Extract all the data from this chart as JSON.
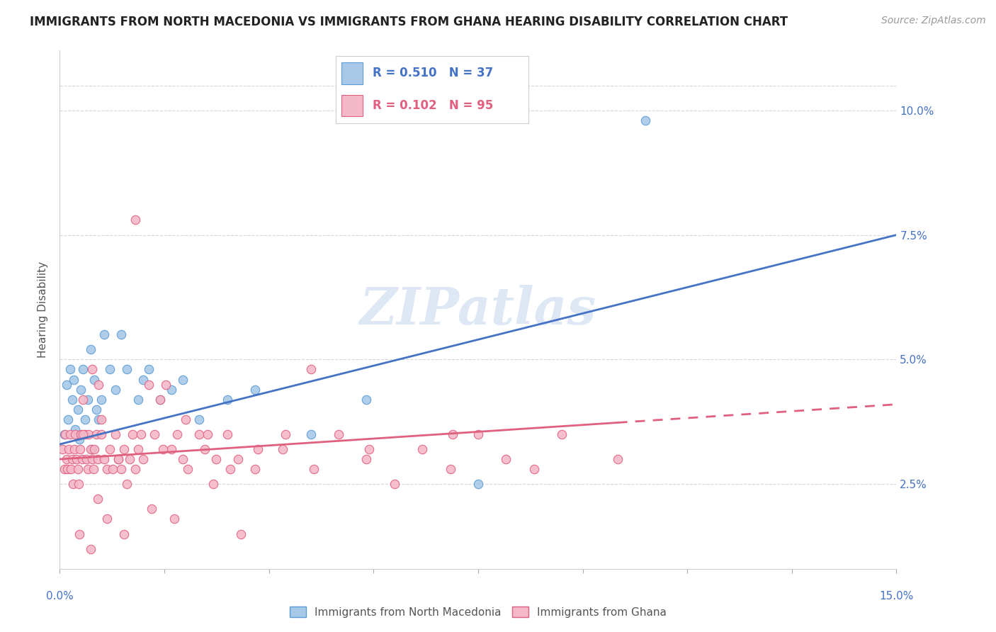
{
  "title": "IMMIGRANTS FROM NORTH MACEDONIA VS IMMIGRANTS FROM GHANA HEARING DISABILITY CORRELATION CHART",
  "source": "Source: ZipAtlas.com",
  "ylabel": "Hearing Disability",
  "xlim": [
    0.0,
    15.0
  ],
  "ylim": [
    0.8,
    11.2
  ],
  "yticks": [
    2.5,
    5.0,
    7.5,
    10.0
  ],
  "ytick_labels": [
    "2.5%",
    "5.0%",
    "7.5%",
    "10.0%"
  ],
  "series_blue": {
    "name": "Immigrants from North Macedonia",
    "color": "#a8c8e8",
    "edge_color": "#5b9bd5",
    "line_color": "#4472c4",
    "R": 0.51,
    "N": 37,
    "x": [
      0.08,
      0.12,
      0.15,
      0.18,
      0.22,
      0.25,
      0.28,
      0.32,
      0.35,
      0.38,
      0.42,
      0.45,
      0.5,
      0.55,
      0.58,
      0.62,
      0.65,
      0.7,
      0.75,
      0.8,
      0.9,
      1.0,
      1.1,
      1.2,
      1.4,
      1.5,
      1.6,
      1.8,
      2.0,
      2.2,
      2.5,
      3.0,
      3.5,
      4.5,
      5.5,
      7.5,
      10.5
    ],
    "y": [
      3.5,
      4.5,
      3.8,
      4.8,
      4.2,
      4.6,
      3.6,
      4.0,
      3.4,
      4.4,
      4.8,
      3.8,
      4.2,
      5.2,
      3.2,
      4.6,
      4.0,
      3.8,
      4.2,
      5.5,
      4.8,
      4.4,
      5.5,
      4.8,
      4.2,
      4.6,
      4.8,
      4.2,
      4.4,
      4.6,
      3.8,
      4.2,
      4.4,
      3.5,
      4.2,
      2.5,
      9.8
    ]
  },
  "series_pink": {
    "name": "Immigrants from Ghana",
    "color": "#f4b8c8",
    "edge_color": "#e06080",
    "line_color": "#e06080",
    "R": 0.102,
    "N": 95,
    "x": [
      0.05,
      0.08,
      0.1,
      0.12,
      0.14,
      0.16,
      0.18,
      0.2,
      0.22,
      0.24,
      0.26,
      0.28,
      0.3,
      0.32,
      0.34,
      0.36,
      0.38,
      0.4,
      0.42,
      0.45,
      0.48,
      0.5,
      0.52,
      0.55,
      0.58,
      0.6,
      0.62,
      0.65,
      0.68,
      0.7,
      0.75,
      0.8,
      0.85,
      0.9,
      0.95,
      1.0,
      1.05,
      1.1,
      1.15,
      1.2,
      1.25,
      1.3,
      1.35,
      1.4,
      1.5,
      1.6,
      1.7,
      1.8,
      1.9,
      2.0,
      2.1,
      2.2,
      2.3,
      2.5,
      2.6,
      2.8,
      3.0,
      3.2,
      3.5,
      4.0,
      4.5,
      5.0,
      5.5,
      6.0,
      6.5,
      7.0,
      7.5,
      8.0,
      8.5,
      9.0,
      10.0,
      0.42,
      0.58,
      0.75,
      1.05,
      1.45,
      1.85,
      2.25,
      2.65,
      3.05,
      3.55,
      4.05,
      4.55,
      5.55,
      7.05,
      3.25,
      1.65,
      2.05,
      0.35,
      0.55,
      0.85,
      1.15,
      0.68,
      1.35,
      2.75
    ],
    "y": [
      3.2,
      2.8,
      3.5,
      3.0,
      2.8,
      3.2,
      3.5,
      2.8,
      3.0,
      2.5,
      3.2,
      3.5,
      3.0,
      2.8,
      2.5,
      3.2,
      3.5,
      3.0,
      4.2,
      3.5,
      3.0,
      2.8,
      3.5,
      3.2,
      3.0,
      2.8,
      3.2,
      3.5,
      3.0,
      4.5,
      3.5,
      3.0,
      2.8,
      3.2,
      2.8,
      3.5,
      3.0,
      2.8,
      3.2,
      2.5,
      3.0,
      3.5,
      2.8,
      3.2,
      3.0,
      4.5,
      3.5,
      4.2,
      4.5,
      3.2,
      3.5,
      3.0,
      2.8,
      3.5,
      3.2,
      3.0,
      3.5,
      3.0,
      2.8,
      3.2,
      4.8,
      3.5,
      3.0,
      2.5,
      3.2,
      2.8,
      3.5,
      3.0,
      2.8,
      3.5,
      3.0,
      3.5,
      4.8,
      3.8,
      3.0,
      3.5,
      3.2,
      3.8,
      3.5,
      2.8,
      3.2,
      3.5,
      2.8,
      3.2,
      3.5,
      1.5,
      2.0,
      1.8,
      1.5,
      1.2,
      1.8,
      1.5,
      2.2,
      7.8,
      2.5
    ]
  },
  "line_blue_x0": 0.0,
  "line_blue_y0": 3.3,
  "line_blue_x1": 15.0,
  "line_blue_y1": 7.5,
  "line_pink_x0": 0.0,
  "line_pink_y0": 3.0,
  "line_pink_x1": 15.0,
  "line_pink_y1": 4.1,
  "line_pink_solid_end": 10.0,
  "watermark_text": "ZIPatlas",
  "watermark_color": "#c8d8ee",
  "background_color": "#ffffff",
  "grid_color": "#d8d8d8",
  "title_fontsize": 12,
  "axis_label_fontsize": 11,
  "tick_fontsize": 11,
  "source_fontsize": 10
}
